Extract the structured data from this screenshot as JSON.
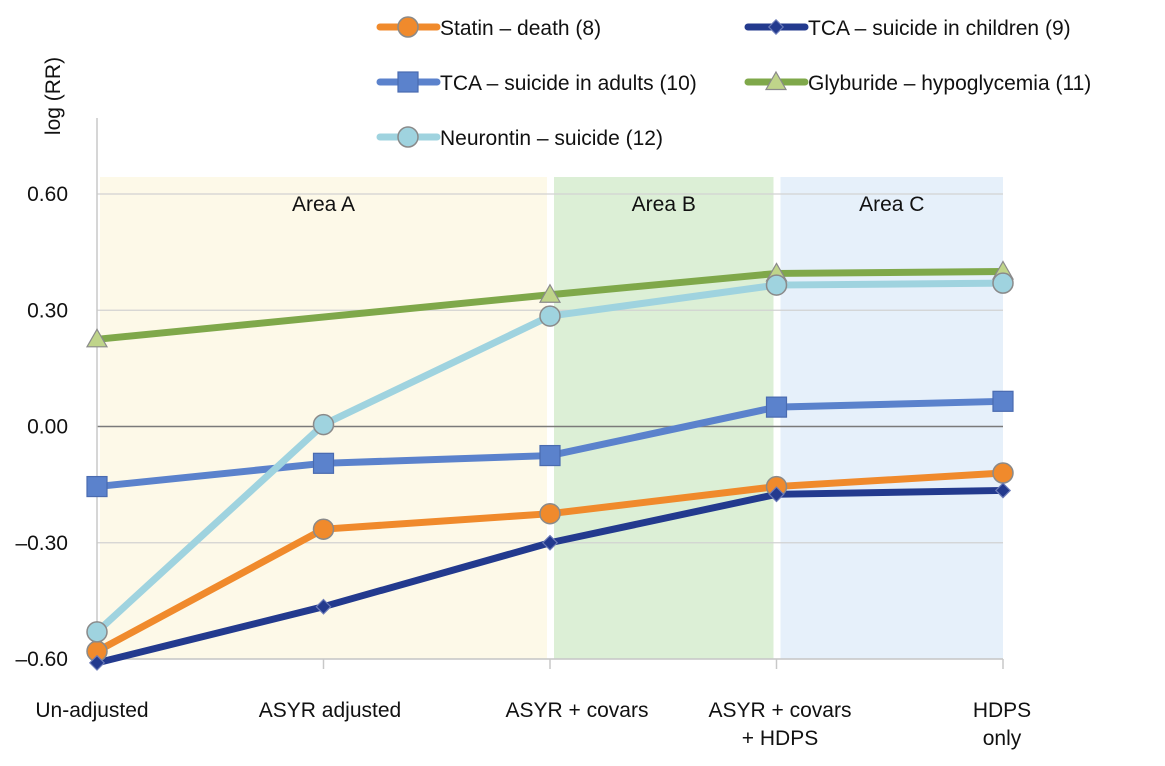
{
  "chart_data": {
    "type": "line",
    "ylabel": "log (RR)",
    "xlabel": "",
    "ylim": [
      -0.6,
      0.6
    ],
    "yticks": [
      {
        "value": 0.6,
        "label": "0.60"
      },
      {
        "value": 0.3,
        "label": "0.30"
      },
      {
        "value": 0.0,
        "label": "0.00"
      },
      {
        "value": -0.3,
        "label": "–0.30"
      },
      {
        "value": -0.6,
        "label": "–0.60"
      }
    ],
    "categories": [
      {
        "lines": [
          "Un-adjusted"
        ]
      },
      {
        "lines": [
          "ASYR adjusted"
        ]
      },
      {
        "lines": [
          "ASYR + covars"
        ]
      },
      {
        "lines": [
          "ASYR + covars",
          "+ HDPS"
        ]
      },
      {
        "lines": [
          "HDPS",
          "only"
        ]
      }
    ],
    "regions": [
      {
        "label": "Area A",
        "from": 0,
        "to": 2,
        "color": "#fdf9e8"
      },
      {
        "label": "Area B",
        "from": 2,
        "to": 3,
        "color": "#dcefd6"
      },
      {
        "label": "Area C",
        "from": 3,
        "to": 4,
        "color": "#e6f0fa"
      }
    ],
    "series": [
      {
        "name": "Statin – death (8)",
        "color": "#f08a2c",
        "marker": "circle",
        "values": [
          -0.58,
          -0.265,
          -0.225,
          -0.155,
          -0.12
        ]
      },
      {
        "name": "TCA – suicide in children (9)",
        "color": "#233a8e",
        "marker": "diamond",
        "values": [
          -0.61,
          -0.465,
          -0.3,
          -0.175,
          -0.165
        ]
      },
      {
        "name": "TCA – suicide in adults (10)",
        "color": "#5b82cc",
        "marker": "square",
        "values": [
          -0.155,
          -0.095,
          -0.075,
          0.05,
          0.065
        ]
      },
      {
        "name": "Glyburide – hypoglycemia (11)",
        "color": "#7fa84a",
        "marker": "triangle",
        "values": [
          0.225,
          null,
          0.34,
          0.395,
          0.4
        ]
      },
      {
        "name": "Neurontin – suicide (12)",
        "color": "#9fd3df",
        "marker": "circle",
        "values": [
          -0.53,
          0.005,
          0.285,
          0.365,
          0.37
        ]
      }
    ]
  }
}
